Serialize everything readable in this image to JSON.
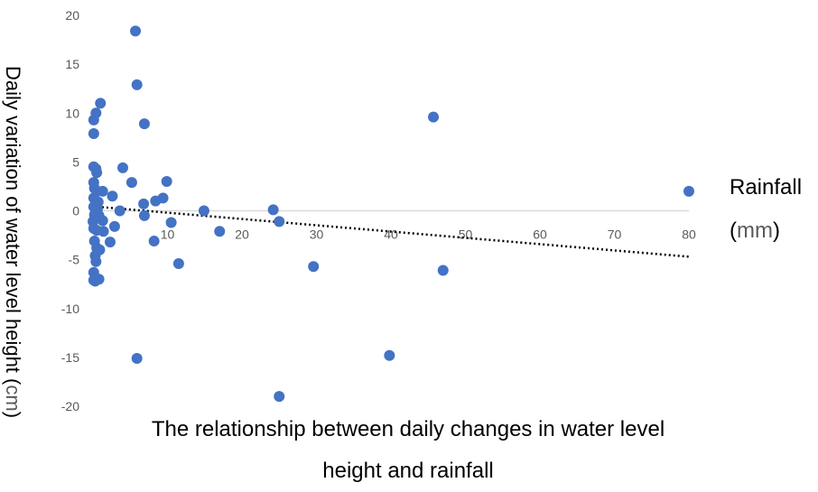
{
  "chart_data": {
    "type": "scatter",
    "title": "",
    "xlabel": "The relationship between daily changes in water level height and rainfall",
    "xlabel_lines": [
      "The relationship between daily changes in water level",
      "height and rainfall"
    ],
    "xaxis_name": "Rainfall",
    "xaxis_unit_parts": [
      "(",
      "mm",
      ")"
    ],
    "ylabel": "Daily variation of water level height",
    "ylabel_unit_parts": [
      "(",
      "cm",
      ")"
    ],
    "xlim": [
      0,
      80
    ],
    "ylim": [
      -20,
      20
    ],
    "x_ticks": [
      "10",
      "20",
      "30",
      "40",
      "50",
      "60",
      "70",
      "80"
    ],
    "y_ticks": [
      "20",
      "15",
      "10",
      "5",
      "0",
      "-5",
      "-10",
      "-15",
      "-20"
    ],
    "grid": false,
    "legend": "none",
    "marker_color": "#4472C4",
    "trendline": {
      "type": "linear",
      "style": "dotted",
      "color": "#000000",
      "x": [
        0,
        80
      ],
      "y": [
        0.45,
        -4.7
      ]
    },
    "points": [
      [
        5.7,
        18.4
      ],
      [
        5.9,
        12.9
      ],
      [
        1,
        11.0
      ],
      [
        0.4,
        10.0
      ],
      [
        0.1,
        9.3
      ],
      [
        6.9,
        8.9
      ],
      [
        0.1,
        7.9
      ],
      [
        45.7,
        9.6
      ],
      [
        0.1,
        4.5
      ],
      [
        0.4,
        4.3
      ],
      [
        0.5,
        3.9
      ],
      [
        4.0,
        4.4
      ],
      [
        0.1,
        2.9
      ],
      [
        5.2,
        2.9
      ],
      [
        9.9,
        3.0
      ],
      [
        0.2,
        2.3
      ],
      [
        0.5,
        2.0
      ],
      [
        1.3,
        2.0
      ],
      [
        2.6,
        1.5
      ],
      [
        0.1,
        1.3
      ],
      [
        0.3,
        1.1
      ],
      [
        0.7,
        0.9
      ],
      [
        8.4,
        1.0
      ],
      [
        9.4,
        1.3
      ],
      [
        6.8,
        0.7
      ],
      [
        0.1,
        0.4
      ],
      [
        0.6,
        0.2
      ],
      [
        3.6,
        0.0
      ],
      [
        14.9,
        0.0
      ],
      [
        24.2,
        0.1
      ],
      [
        0.2,
        -0.4
      ],
      [
        0.8,
        -0.5
      ],
      [
        1.3,
        -1.0
      ],
      [
        0,
        -1.1
      ],
      [
        6.9,
        -0.5
      ],
      [
        10.5,
        -1.2
      ],
      [
        25.0,
        -1.1
      ],
      [
        2.9,
        -1.6
      ],
      [
        0.1,
        -1.8
      ],
      [
        0.5,
        -2.0
      ],
      [
        1.4,
        -2.1
      ],
      [
        17.0,
        -2.1
      ],
      [
        0.2,
        -3.1
      ],
      [
        2.3,
        -3.2
      ],
      [
        8.2,
        -3.1
      ],
      [
        0.5,
        -3.8
      ],
      [
        0.9,
        -4.0
      ],
      [
        0.3,
        -4.6
      ],
      [
        0.4,
        -5.2
      ],
      [
        11.5,
        -5.4
      ],
      [
        29.6,
        -5.7
      ],
      [
        47.0,
        -6.1
      ],
      [
        0.1,
        -6.3
      ],
      [
        0.1,
        -7.1
      ],
      [
        0.8,
        -7.0
      ],
      [
        0.3,
        -7.2
      ],
      [
        5.9,
        -15.1
      ],
      [
        39.8,
        -14.8
      ],
      [
        25.0,
        -19.0
      ],
      [
        80.0,
        2.0
      ]
    ]
  }
}
